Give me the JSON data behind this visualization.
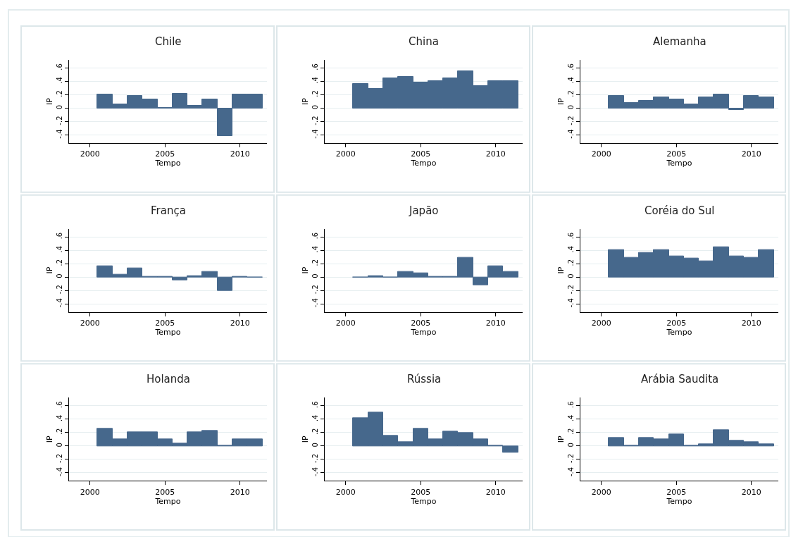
{
  "chart_data": [
    {
      "type": "bar",
      "title": "Chile",
      "xlabel": "Tempo",
      "ylabel": "IP",
      "x": [
        2001,
        2002,
        2003,
        2004,
        2005,
        2006,
        2007,
        2008,
        2009,
        2010,
        2011
      ],
      "values": [
        0.2,
        0.06,
        0.18,
        0.13,
        0.01,
        0.22,
        0.04,
        0.13,
        -0.42,
        0.2,
        0.2
      ],
      "color": "#46688c",
      "xlim": [
        1998.6,
        2011.8
      ],
      "ylim": [
        -0.52,
        0.72
      ],
      "xticks": [
        2000,
        2005,
        2010
      ],
      "yticks": [
        {
          "value": -0.4,
          "label": "-.4"
        },
        {
          "value": -0.2,
          "label": "-.2"
        },
        0,
        {
          "value": 0.2,
          "label": ".2"
        },
        {
          "value": 0.4,
          "label": ".4"
        },
        {
          "value": 0.6,
          "label": ".6"
        }
      ],
      "grid": "y"
    },
    {
      "type": "bar",
      "title": "China",
      "xlabel": "Tempo",
      "ylabel": "IP",
      "x": [
        2001,
        2002,
        2003,
        2004,
        2005,
        2006,
        2007,
        2008,
        2009,
        2010,
        2011
      ],
      "values": [
        0.36,
        0.29,
        0.45,
        0.47,
        0.38,
        0.4,
        0.45,
        0.55,
        0.33,
        0.4,
        0.4
      ],
      "color": "#46688c",
      "xlim": [
        1998.6,
        2011.8
      ],
      "ylim": [
        -0.52,
        0.72
      ],
      "xticks": [
        2000,
        2005,
        2010
      ],
      "yticks": [
        {
          "value": -0.4,
          "label": "-.4"
        },
        {
          "value": -0.2,
          "label": "-.2"
        },
        0,
        {
          "value": 0.2,
          "label": ".2"
        },
        {
          "value": 0.4,
          "label": ".4"
        },
        {
          "value": 0.6,
          "label": ".6"
        }
      ],
      "grid": "y"
    },
    {
      "type": "bar",
      "title": "Alemanha",
      "xlabel": "Tempo",
      "ylabel": "IP",
      "x": [
        2001,
        2002,
        2003,
        2004,
        2005,
        2006,
        2007,
        2008,
        2009,
        2010,
        2011
      ],
      "values": [
        0.18,
        0.08,
        0.11,
        0.16,
        0.13,
        0.06,
        0.16,
        0.2,
        -0.03,
        0.18,
        0.16
      ],
      "color": "#46688c",
      "xlim": [
        1998.6,
        2011.8
      ],
      "ylim": [
        -0.52,
        0.72
      ],
      "xticks": [
        2000,
        2005,
        2010
      ],
      "yticks": [
        {
          "value": -0.4,
          "label": "-.4"
        },
        {
          "value": -0.2,
          "label": "-.2"
        },
        0,
        {
          "value": 0.2,
          "label": ".2"
        },
        {
          "value": 0.4,
          "label": ".4"
        },
        {
          "value": 0.6,
          "label": ".6"
        }
      ],
      "grid": "y"
    },
    {
      "type": "bar",
      "title": "França",
      "xlabel": "Tempo",
      "ylabel": "IP",
      "x": [
        2001,
        2002,
        2003,
        2004,
        2005,
        2006,
        2007,
        2008,
        2009,
        2010,
        2011
      ],
      "values": [
        0.16,
        0.04,
        0.13,
        0.01,
        0.01,
        -0.05,
        0.02,
        0.08,
        -0.2,
        0.01,
        -0.01
      ],
      "color": "#46688c",
      "xlim": [
        1998.6,
        2011.8
      ],
      "ylim": [
        -0.52,
        0.72
      ],
      "xticks": [
        2000,
        2005,
        2010
      ],
      "yticks": [
        {
          "value": -0.4,
          "label": "-.4"
        },
        {
          "value": -0.2,
          "label": "-.2"
        },
        0,
        {
          "value": 0.2,
          "label": ".2"
        },
        {
          "value": 0.4,
          "label": ".4"
        },
        {
          "value": 0.6,
          "label": ".6"
        }
      ],
      "grid": "y"
    },
    {
      "type": "bar",
      "title": "Japão",
      "xlabel": "Tempo",
      "ylabel": "IP",
      "x": [
        2001,
        2002,
        2003,
        2004,
        2005,
        2006,
        2007,
        2008,
        2009,
        2010,
        2011
      ],
      "values": [
        -0.01,
        0.02,
        -0.01,
        0.08,
        0.06,
        0.01,
        0.01,
        0.29,
        -0.12,
        0.16,
        0.08
      ],
      "color": "#46688c",
      "xlim": [
        1998.6,
        2011.8
      ],
      "ylim": [
        -0.52,
        0.72
      ],
      "xticks": [
        2000,
        2005,
        2010
      ],
      "yticks": [
        {
          "value": -0.4,
          "label": "-.4"
        },
        {
          "value": -0.2,
          "label": "-.2"
        },
        0,
        {
          "value": 0.2,
          "label": ".2"
        },
        {
          "value": 0.4,
          "label": ".4"
        },
        {
          "value": 0.6,
          "label": ".6"
        }
      ],
      "grid": "y"
    },
    {
      "type": "bar",
      "title": "Coréia do Sul",
      "xlabel": "Tempo",
      "ylabel": "IP",
      "x": [
        2001,
        2002,
        2003,
        2004,
        2005,
        2006,
        2007,
        2008,
        2009,
        2010,
        2011
      ],
      "values": [
        0.4,
        0.29,
        0.36,
        0.4,
        0.31,
        0.28,
        0.24,
        0.45,
        0.31,
        0.29,
        0.4
      ],
      "color": "#46688c",
      "xlim": [
        1998.6,
        2011.8
      ],
      "ylim": [
        -0.52,
        0.72
      ],
      "xticks": [
        2000,
        2005,
        2010
      ],
      "yticks": [
        {
          "value": -0.4,
          "label": "-.4"
        },
        {
          "value": -0.2,
          "label": "-.2"
        },
        0,
        {
          "value": 0.2,
          "label": ".2"
        },
        {
          "value": 0.4,
          "label": ".4"
        },
        {
          "value": 0.6,
          "label": ".6"
        }
      ],
      "grid": "y"
    },
    {
      "type": "bar",
      "title": "Holanda",
      "xlabel": "Tempo",
      "ylabel": "IP",
      "x": [
        2001,
        2002,
        2003,
        2004,
        2005,
        2006,
        2007,
        2008,
        2009,
        2010,
        2011
      ],
      "values": [
        0.26,
        0.1,
        0.21,
        0.21,
        0.1,
        0.04,
        0.21,
        0.23,
        0.01,
        0.1,
        0.1
      ],
      "color": "#46688c",
      "xlim": [
        1998.6,
        2011.8
      ],
      "ylim": [
        -0.52,
        0.72
      ],
      "xticks": [
        2000,
        2005,
        2010
      ],
      "yticks": [
        {
          "value": -0.4,
          "label": "-.4"
        },
        {
          "value": -0.2,
          "label": "-.2"
        },
        0,
        {
          "value": 0.2,
          "label": ".2"
        },
        {
          "value": 0.4,
          "label": ".4"
        },
        {
          "value": 0.6,
          "label": ".6"
        }
      ],
      "grid": "y"
    },
    {
      "type": "bar",
      "title": "Rússia",
      "xlabel": "Tempo",
      "ylabel": "IP",
      "x": [
        2001,
        2002,
        2003,
        2004,
        2005,
        2006,
        2007,
        2008,
        2009,
        2010,
        2011
      ],
      "values": [
        0.42,
        0.5,
        0.15,
        0.06,
        0.26,
        0.1,
        0.22,
        0.19,
        0.1,
        0.01,
        -0.1
      ],
      "color": "#46688c",
      "xlim": [
        1998.6,
        2011.8
      ],
      "ylim": [
        -0.52,
        0.72
      ],
      "xticks": [
        2000,
        2005,
        2010
      ],
      "yticks": [
        {
          "value": -0.4,
          "label": "-.4"
        },
        {
          "value": -0.2,
          "label": "-.2"
        },
        0,
        {
          "value": 0.2,
          "label": ".2"
        },
        {
          "value": 0.4,
          "label": ".4"
        },
        {
          "value": 0.6,
          "label": ".6"
        }
      ],
      "grid": "y"
    },
    {
      "type": "bar",
      "title": "Arábia Saudita",
      "xlabel": "Tempo",
      "ylabel": "IP",
      "x": [
        2001,
        2002,
        2003,
        2004,
        2005,
        2006,
        2007,
        2008,
        2009,
        2010,
        2011
      ],
      "values": [
        0.12,
        0.01,
        0.12,
        0.1,
        0.17,
        0.01,
        0.03,
        0.24,
        0.08,
        0.06,
        0.03
      ],
      "color": "#46688c",
      "xlim": [
        1998.6,
        2011.8
      ],
      "ylim": [
        -0.52,
        0.72
      ],
      "xticks": [
        2000,
        2005,
        2010
      ],
      "yticks": [
        {
          "value": -0.4,
          "label": "-.4"
        },
        {
          "value": -0.2,
          "label": "-.2"
        },
        0,
        {
          "value": 0.2,
          "label": ".2"
        },
        {
          "value": 0.4,
          "label": ".4"
        },
        {
          "value": 0.6,
          "label": ".6"
        }
      ],
      "grid": "y"
    }
  ]
}
